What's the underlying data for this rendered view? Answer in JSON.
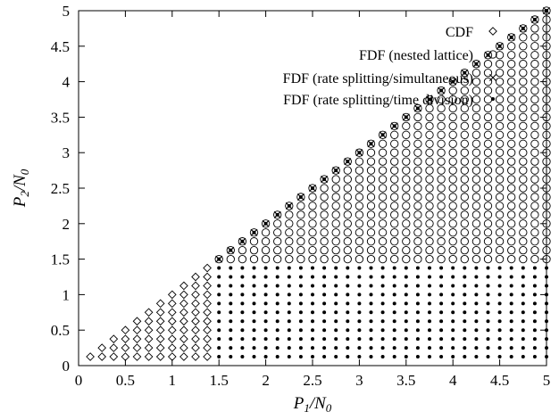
{
  "chart_data": {
    "type": "scatter",
    "title": "",
    "xlabel": "P1/N0",
    "ylabel": "P2/N0",
    "xlim": [
      0,
      5
    ],
    "ylim": [
      0,
      5
    ],
    "xticks": [
      "0",
      "0.5",
      "1",
      "1.5",
      "2",
      "2.5",
      "3",
      "3.5",
      "4",
      "4.5",
      "5"
    ],
    "yticks": [
      "0",
      "0.5",
      "1",
      "1.5",
      "2",
      "2.5",
      "3",
      "3.5",
      "4",
      "4.5",
      "5"
    ],
    "grid": false,
    "legend_position": "top-right",
    "grid_step": 0.125,
    "series": [
      {
        "name": "CDF",
        "marker": "diamond",
        "region": "points with y <= x, x < 1.5, y < 1.5"
      },
      {
        "name": "FDF (nested lattice)",
        "marker": "circle",
        "region": "points with y <= x, y >= 1.5"
      },
      {
        "name": "FDF (rate splitting/simultaneous)",
        "marker": "cross",
        "region": "points on the diagonal y = x, x >= 1.5"
      },
      {
        "name": "FDF (rate splitting/time division)",
        "marker": "dot",
        "region": "points with y <= x, x >= 1.5, plus the diagonal for x >= 1.5"
      }
    ]
  }
}
